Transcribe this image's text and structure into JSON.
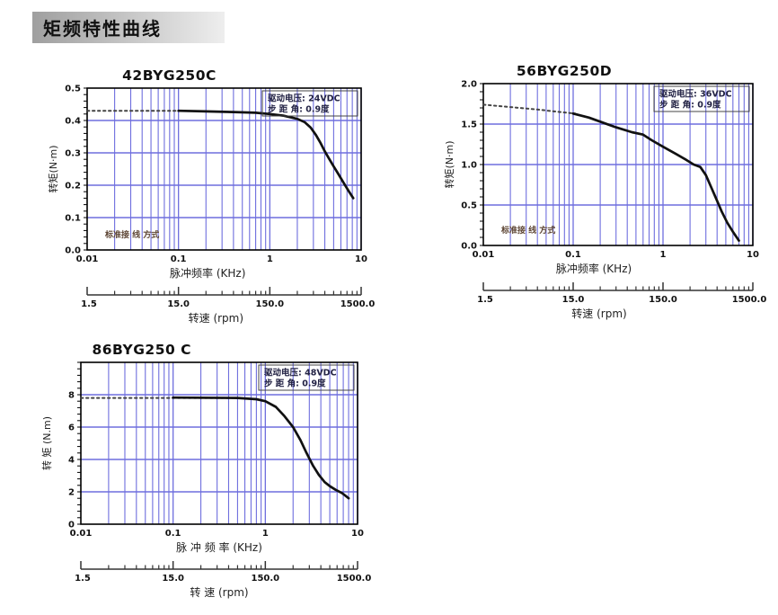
{
  "page": {
    "header": "矩频特性曲线"
  },
  "colors": {
    "grid": "#6e6ede",
    "axis": "#000000",
    "curve": "#111111",
    "dotted_curve": "#444444",
    "annotation_text": "#222244",
    "annotation_border": "#444444",
    "wiring_text": "#5c4433",
    "tick_text": "#111111",
    "ruler": "#333333",
    "header_bg_from": "#9f9f9f",
    "header_bg_to": "#eeeeee"
  },
  "chart_data": [
    {
      "type": "line",
      "title": "42BYG250C",
      "ylabel": "转矩(N·m)",
      "xlabel": "脉冲频率 (KHz)",
      "x_scale": "log",
      "xlim": [
        0.01,
        10
      ],
      "xtick_labels": [
        "0.01",
        "0.1",
        "1",
        "10"
      ],
      "ylim": [
        0,
        0.5
      ],
      "ytick_values": [
        0,
        0.1,
        0.2,
        0.3,
        0.4,
        0.5
      ],
      "ytick_labels": [
        "0.0",
        "0.1",
        "0.2",
        "0.3",
        "0.4",
        "0.5"
      ],
      "grid": true,
      "annotation": [
        "驱动电压: 24VDC",
        "步 距 角: 0.9度"
      ],
      "wiring_note": "标准接 线 方式",
      "series": [
        {
          "name": "holding-torque-dotted",
          "style": "dotted",
          "points": [
            [
              0.01,
              0.43
            ],
            [
              0.115,
              0.43
            ]
          ]
        },
        {
          "name": "torque-curve",
          "style": "solid",
          "points": [
            [
              0.1,
              0.43
            ],
            [
              0.2,
              0.428
            ],
            [
              0.4,
              0.426
            ],
            [
              0.7,
              0.424
            ],
            [
              1,
              0.42
            ],
            [
              1.4,
              0.415
            ],
            [
              2,
              0.405
            ],
            [
              2.4,
              0.395
            ],
            [
              2.8,
              0.378
            ],
            [
              3.2,
              0.355
            ],
            [
              3.6,
              0.33
            ],
            [
              4,
              0.305
            ],
            [
              4.5,
              0.28
            ],
            [
              5,
              0.258
            ],
            [
              5.7,
              0.232
            ],
            [
              6.5,
              0.205
            ],
            [
              7.3,
              0.182
            ],
            [
              8.2,
              0.16
            ]
          ]
        }
      ],
      "speed_axis": {
        "title": "转速 (rpm)",
        "labels": [
          "1.5",
          "15.0",
          "150.0",
          "1500.0"
        ]
      }
    },
    {
      "type": "line",
      "title": "56BYG250D",
      "ylabel": "转矩(N·m)",
      "xlabel": "脉冲频率 (KHz)",
      "x_scale": "log",
      "xlim": [
        0.01,
        10
      ],
      "xtick_labels": [
        "0.01",
        "0.1",
        "1",
        "10"
      ],
      "ylim": [
        0,
        2.0
      ],
      "ytick_values": [
        0,
        0.5,
        1.0,
        1.5,
        2.0
      ],
      "ytick_labels": [
        "0.0",
        "0.5",
        "1.0",
        "1.5",
        "2.0"
      ],
      "grid": true,
      "annotation": [
        "驱动电压: 36VDC",
        "步 距 角: 0.9度"
      ],
      "wiring_note": "标准接 线 方式",
      "series": [
        {
          "name": "holding-torque-dotted",
          "style": "dotted",
          "points": [
            [
              0.01,
              1.74
            ],
            [
              0.02,
              1.71
            ],
            [
              0.04,
              1.68
            ],
            [
              0.07,
              1.65
            ],
            [
              0.105,
              1.63
            ]
          ]
        },
        {
          "name": "torque-curve",
          "style": "solid",
          "points": [
            [
              0.1,
              1.63
            ],
            [
              0.15,
              1.58
            ],
            [
              0.2,
              1.53
            ],
            [
              0.3,
              1.46
            ],
            [
              0.45,
              1.4
            ],
            [
              0.6,
              1.37
            ],
            [
              0.75,
              1.3
            ],
            [
              1,
              1.22
            ],
            [
              1.4,
              1.13
            ],
            [
              1.8,
              1.06
            ],
            [
              2.2,
              1.0
            ],
            [
              2.6,
              0.97
            ],
            [
              3,
              0.87
            ],
            [
              3.5,
              0.7
            ],
            [
              3.9,
              0.58
            ],
            [
              4.5,
              0.42
            ],
            [
              5.2,
              0.28
            ],
            [
              6,
              0.17
            ],
            [
              7,
              0.06
            ]
          ]
        }
      ],
      "speed_axis": {
        "title": "转速 (rpm)",
        "labels": [
          "1.5",
          "15.0",
          "150.0",
          "1500.0"
        ]
      }
    },
    {
      "type": "line",
      "title": "86BYG250 C",
      "ylabel": "转 矩 (N.m)",
      "xlabel": "脉 冲 频 率 (KHz)",
      "x_scale": "log",
      "xlim": [
        0.01,
        10
      ],
      "xtick_labels": [
        "0.01",
        "0.1",
        "1",
        "10"
      ],
      "ylim": [
        0,
        10
      ],
      "ytick_values": [
        0,
        2,
        4,
        6,
        8
      ],
      "ytick_labels": [
        "0",
        "2",
        "4",
        "6",
        "8"
      ],
      "grid": true,
      "annotation": [
        "驱动电压: 48VDC",
        "步 距 角: 0.9度"
      ],
      "wiring_note": null,
      "series": [
        {
          "name": "holding-torque-dotted",
          "style": "dotted",
          "points": [
            [
              0.01,
              7.8
            ],
            [
              0.45,
              7.8
            ]
          ]
        },
        {
          "name": "torque-curve",
          "style": "solid",
          "points": [
            [
              0.1,
              7.82
            ],
            [
              0.5,
              7.8
            ],
            [
              0.8,
              7.72
            ],
            [
              1,
              7.6
            ],
            [
              1.3,
              7.25
            ],
            [
              1.6,
              6.7
            ],
            [
              2,
              6.0
            ],
            [
              2.4,
              5.2
            ],
            [
              2.8,
              4.4
            ],
            [
              3.3,
              3.6
            ],
            [
              3.8,
              3.05
            ],
            [
              4.4,
              2.6
            ],
            [
              5,
              2.35
            ],
            [
              5.8,
              2.12
            ],
            [
              6.8,
              1.92
            ],
            [
              8,
              1.6
            ]
          ]
        }
      ],
      "speed_axis": {
        "title": "转 速 (rpm)",
        "labels": [
          "1.5",
          "15.0",
          "150.0",
          "1500.0"
        ]
      }
    }
  ]
}
